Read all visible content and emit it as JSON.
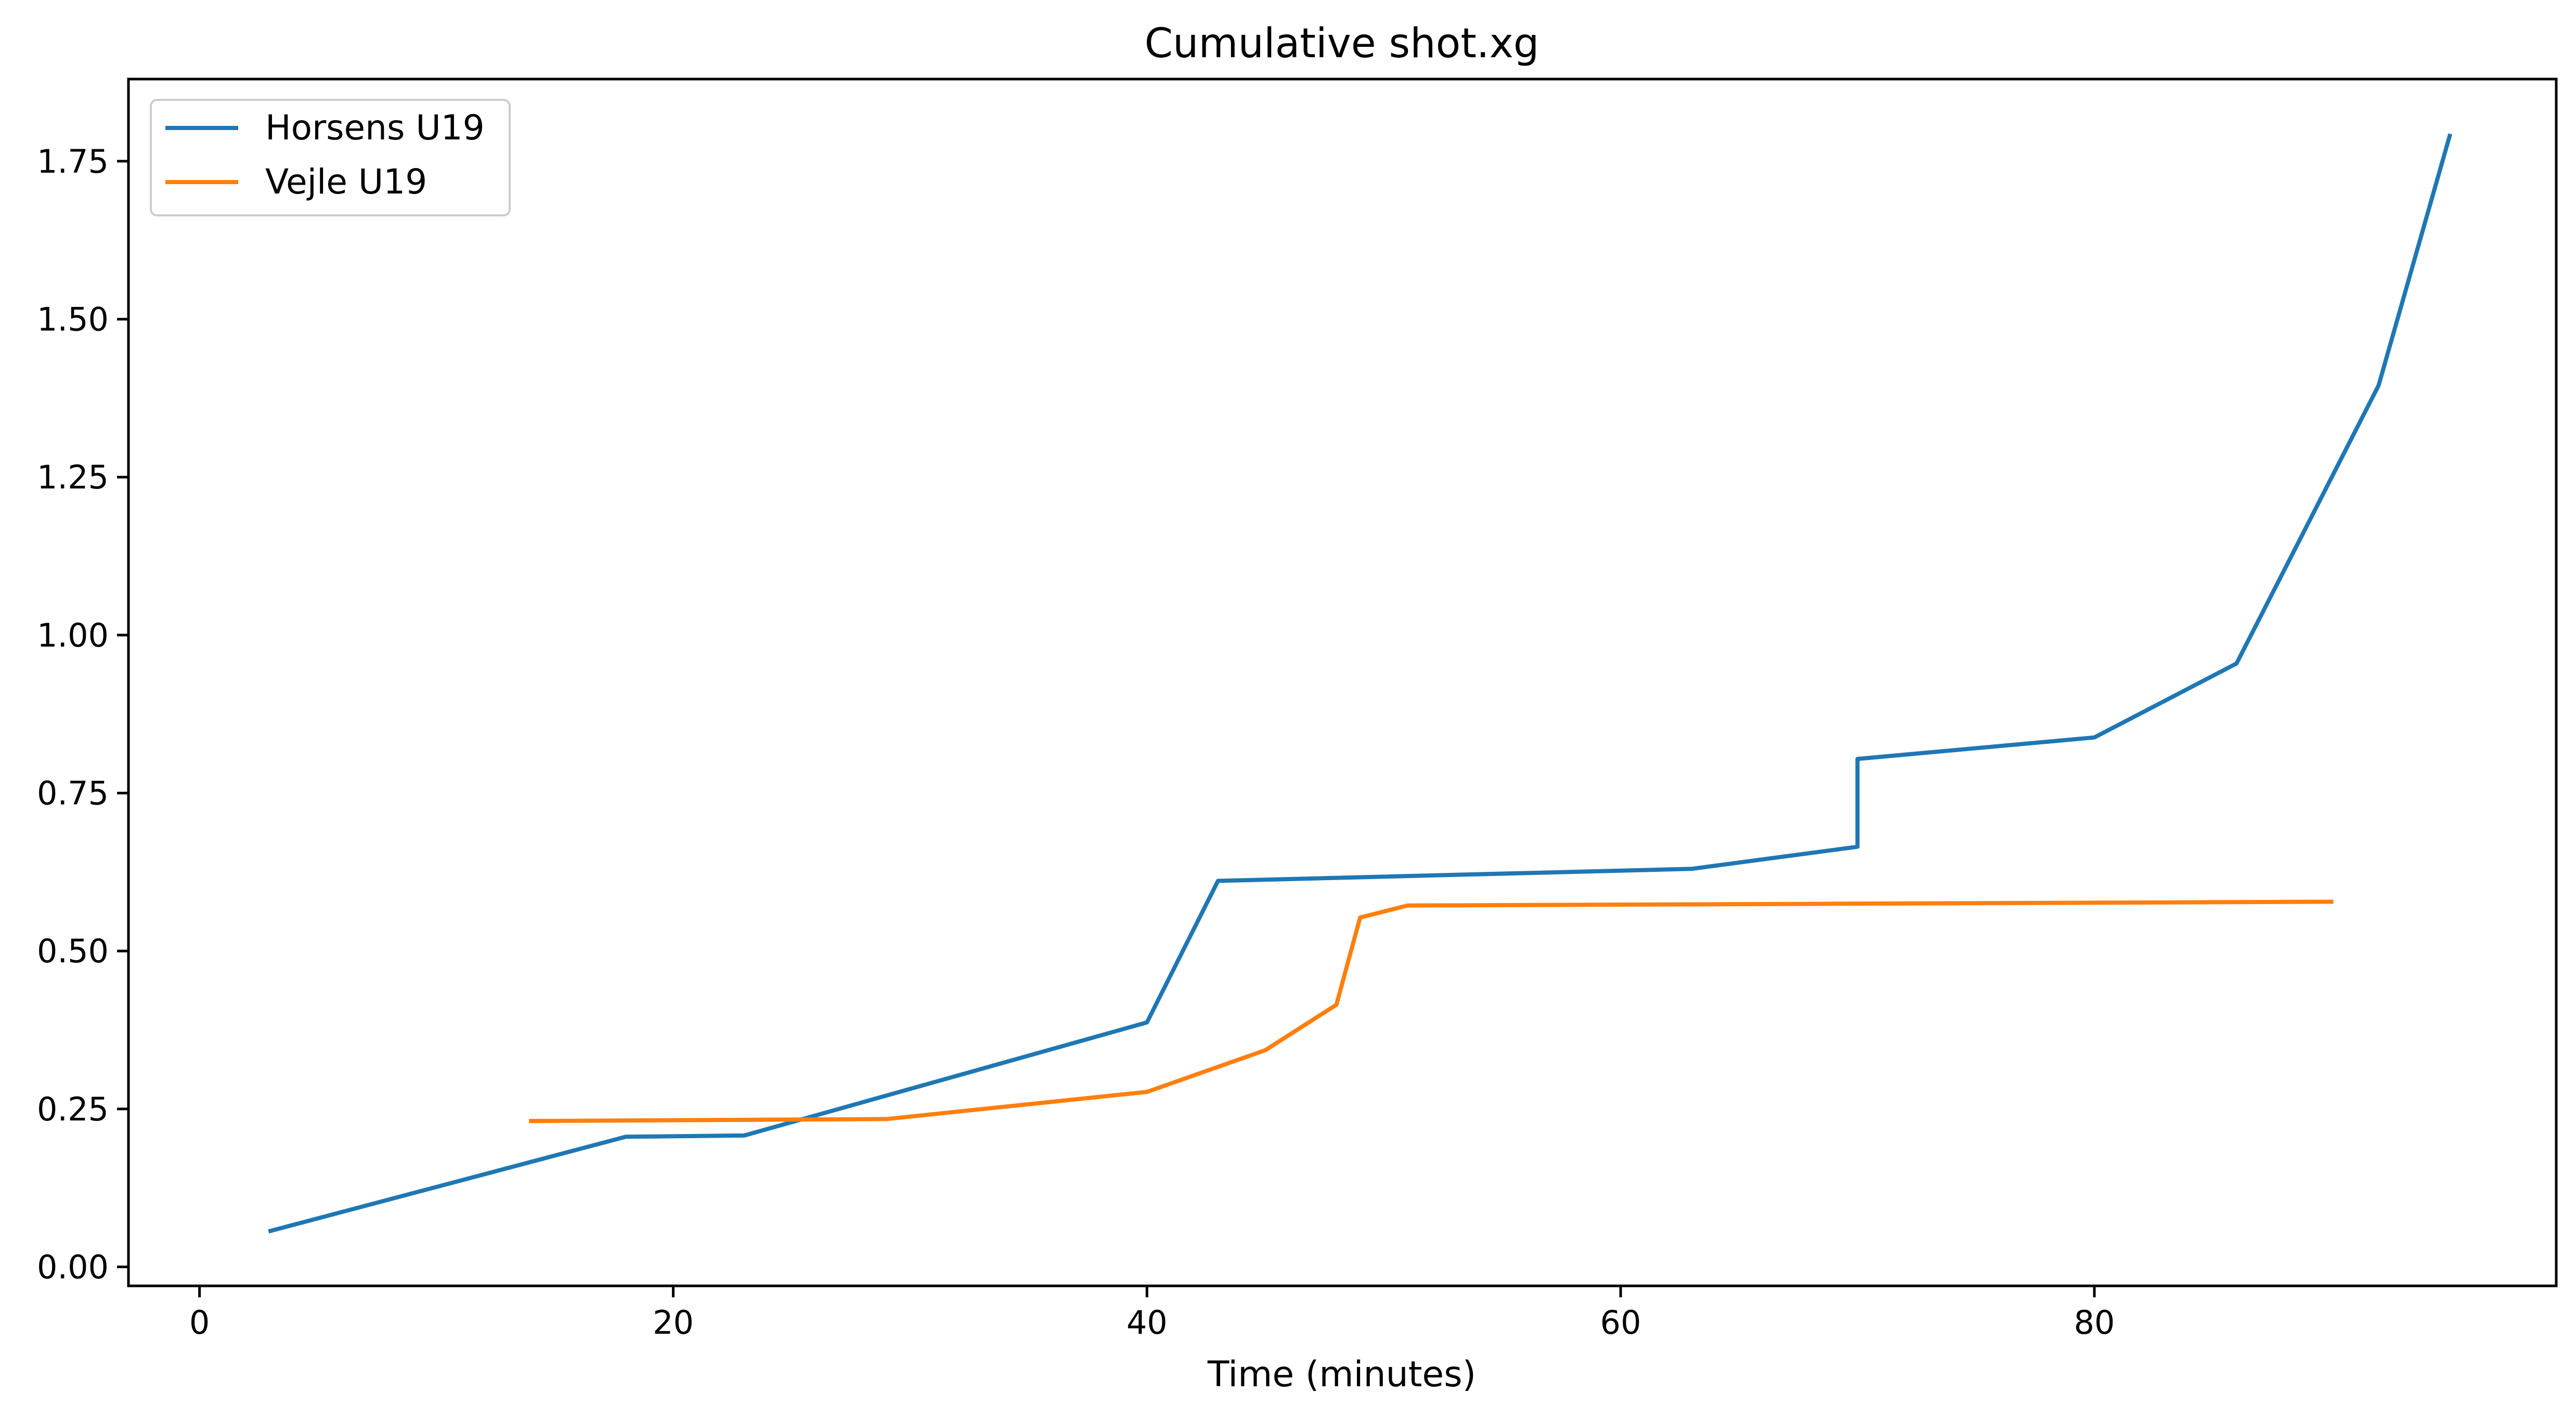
{
  "chart_data": {
    "type": "line",
    "title": "Cumulative shot.xg",
    "xlabel": "Time (minutes)",
    "ylabel": "",
    "xlim": [
      -3.0,
      99.5
    ],
    "ylim": [
      -0.03,
      1.88
    ],
    "xticks": [
      0,
      20,
      40,
      60,
      80
    ],
    "xtick_labels": [
      "0",
      "20",
      "40",
      "60",
      "80"
    ],
    "yticks": [
      0.0,
      0.25,
      0.5,
      0.75,
      1.0,
      1.25,
      1.5,
      1.75
    ],
    "ytick_labels": [
      "0.00",
      "0.25",
      "0.50",
      "0.75",
      "1.00",
      "1.25",
      "1.50",
      "1.75"
    ],
    "grid": false,
    "legend_position": "top-left",
    "series": [
      {
        "name": "Horsens U19",
        "color": "#1f77b4",
        "x": [
          3,
          18,
          23,
          40,
          43,
          63,
          70,
          70,
          80,
          86,
          92,
          95
        ],
        "y": [
          0.057,
          0.206,
          0.208,
          0.387,
          0.611,
          0.63,
          0.665,
          0.804,
          0.838,
          0.955,
          1.395,
          1.79
        ]
      },
      {
        "name": "Vejle U19",
        "color": "#ff7f0e",
        "x": [
          14,
          29,
          40,
          45,
          48,
          49,
          51,
          90
        ],
        "y": [
          0.231,
          0.234,
          0.277,
          0.343,
          0.415,
          0.553,
          0.572,
          0.578
        ]
      }
    ]
  }
}
